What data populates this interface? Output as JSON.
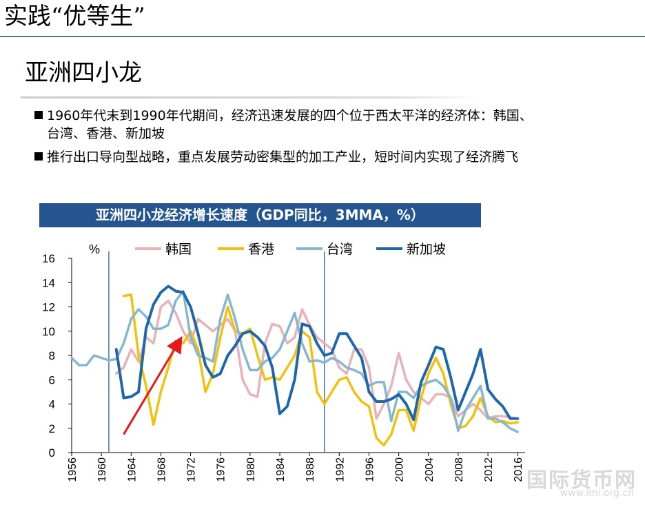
{
  "header": {
    "title": "实践“优等生”"
  },
  "section": {
    "title": "亚洲四小龙"
  },
  "bullets": [
    {
      "line1": "1960年代末到1990年代期间，经济迅速发展的四个位于西太平洋的经济体：韩国、",
      "line2": "台湾、香港、新加坡"
    },
    {
      "line1": "推行出口导向型战略，重点发展劳动密集型的加工产业，短时间内实现了经济腾飞"
    }
  ],
  "watermark": {
    "text": "国际货币网",
    "url": "www.imi.org.cn"
  },
  "chart_data": {
    "type": "line",
    "title": "亚洲四小龙经济增长速度（GDP同比，3MMA，%）",
    "ylabel": "%",
    "ylim": [
      0,
      16
    ],
    "yticks": [
      0,
      2,
      4,
      6,
      8,
      10,
      12,
      14,
      16
    ],
    "xlim": [
      1956,
      2017
    ],
    "xticks": [
      1956,
      1960,
      1964,
      1968,
      1972,
      1976,
      1980,
      1984,
      1988,
      1992,
      1996,
      2000,
      2004,
      2008,
      2012,
      2016
    ],
    "vlines": [
      1961,
      1990
    ],
    "legend": "top",
    "series": [
      {
        "name": "韩国",
        "color": "#e6b3b8",
        "x": [
          1962,
          1963,
          1964,
          1965,
          1966,
          1967,
          1968,
          1969,
          1970,
          1971,
          1972,
          1973,
          1974,
          1975,
          1976,
          1977,
          1978,
          1979,
          1980,
          1981,
          1982,
          1983,
          1984,
          1985,
          1986,
          1987,
          1988,
          1989,
          1990,
          1991,
          1992,
          1993,
          1994,
          1995,
          1996,
          1997,
          1998,
          1999,
          2000,
          2001,
          2002,
          2003,
          2004,
          2005,
          2006,
          2007,
          2008,
          2009,
          2010,
          2011,
          2012,
          2013,
          2014,
          2015,
          2016
        ],
        "y": [
          6.5,
          7.0,
          8.5,
          7.5,
          9.5,
          9.0,
          12.0,
          12.5,
          11.5,
          10.0,
          9.0,
          11.0,
          10.5,
          10.0,
          10.5,
          11.0,
          10.0,
          6.0,
          4.8,
          4.6,
          9.0,
          10.6,
          10.4,
          9.0,
          9.5,
          11.8,
          10.5,
          9.5,
          9.0,
          8.5,
          7.0,
          6.5,
          8.5,
          8.5,
          7.0,
          2.8,
          4.0,
          5.5,
          8.2,
          6.0,
          5.0,
          4.5,
          4.0,
          4.8,
          4.8,
          4.5,
          3.0,
          3.5,
          4.0,
          3.5,
          2.8,
          3.0,
          3.0,
          2.9,
          2.8
        ]
      },
      {
        "name": "香港",
        "color": "#f2c10f",
        "x": [
          1962,
          1963,
          1964,
          1965,
          1966,
          1967,
          1968,
          1969,
          1970,
          1971,
          1972,
          1973,
          1974,
          1975,
          1976,
          1977,
          1978,
          1979,
          1980,
          1981,
          1982,
          1983,
          1984,
          1985,
          1986,
          1987,
          1988,
          1989,
          1990,
          1991,
          1992,
          1993,
          1994,
          1995,
          1996,
          1997,
          1998,
          1999,
          2000,
          2001,
          2002,
          2003,
          2004,
          2005,
          2006,
          2007,
          2008,
          2009,
          2010,
          2011,
          2012,
          2013,
          2014,
          2015,
          2016
        ],
        "y": [
          null,
          12.9,
          13.0,
          8.0,
          5.5,
          2.3,
          5.0,
          7.0,
          9.2,
          9.0,
          10.0,
          8.5,
          5.0,
          6.5,
          9.5,
          12.0,
          10.0,
          9.8,
          10.2,
          8.0,
          6.0,
          6.2,
          6.0,
          7.0,
          8.0,
          10.0,
          9.5,
          5.0,
          4.0,
          5.0,
          6.0,
          6.2,
          5.0,
          4.2,
          3.8,
          1.2,
          0.6,
          1.5,
          3.5,
          3.5,
          1.8,
          4.5,
          6.5,
          7.8,
          6.5,
          4.0,
          2.0,
          2.2,
          3.0,
          4.5,
          3.0,
          2.5,
          2.6,
          2.4,
          2.5
        ]
      },
      {
        "name": "台湾",
        "color": "#86b7cf",
        "x": [
          1956,
          1957,
          1958,
          1959,
          1960,
          1961,
          1962,
          1963,
          1964,
          1965,
          1966,
          1967,
          1968,
          1969,
          1970,
          1971,
          1972,
          1973,
          1974,
          1975,
          1976,
          1977,
          1978,
          1979,
          1980,
          1981,
          1982,
          1983,
          1984,
          1985,
          1986,
          1987,
          1988,
          1989,
          1990,
          1991,
          1992,
          1993,
          1994,
          1995,
          1996,
          1997,
          1998,
          1999,
          2000,
          2001,
          2002,
          2003,
          2004,
          2005,
          2006,
          2007,
          2008,
          2009,
          2010,
          2011,
          2012,
          2013,
          2014,
          2015,
          2016
        ],
        "y": [
          7.8,
          7.2,
          7.2,
          8.0,
          7.8,
          7.6,
          7.7,
          9.0,
          11.0,
          11.8,
          11.2,
          10.2,
          10.2,
          10.5,
          12.5,
          13.3,
          9.5,
          8.0,
          7.8,
          7.5,
          11.0,
          13.0,
          11.0,
          8.5,
          6.8,
          6.8,
          7.5,
          7.8,
          8.5,
          10.0,
          11.5,
          9.0,
          7.5,
          7.6,
          7.4,
          7.8,
          7.5,
          7.0,
          6.8,
          6.5,
          5.5,
          5.8,
          5.8,
          2.6,
          5.0,
          5.0,
          4.5,
          5.5,
          5.8,
          6.0,
          5.5,
          4.5,
          1.8,
          3.5,
          4.5,
          5.5,
          2.8,
          2.8,
          2.5,
          2.0,
          1.7
        ]
      },
      {
        "name": "新加坡",
        "color": "#1f67a8",
        "x": [
          1962,
          1963,
          1964,
          1965,
          1966,
          1967,
          1968,
          1969,
          1970,
          1971,
          1972,
          1973,
          1974,
          1975,
          1976,
          1977,
          1978,
          1979,
          1980,
          1981,
          1982,
          1983,
          1984,
          1985,
          1986,
          1987,
          1988,
          1989,
          1990,
          1991,
          1992,
          1993,
          1994,
          1995,
          1996,
          1997,
          1998,
          1999,
          2000,
          2001,
          2002,
          2003,
          2004,
          2005,
          2006,
          2007,
          2008,
          2009,
          2010,
          2011,
          2012,
          2013,
          2014,
          2015,
          2016
        ],
        "y": [
          8.5,
          4.5,
          4.6,
          5.0,
          10.2,
          12.2,
          13.2,
          13.7,
          13.3,
          13.2,
          12.0,
          9.8,
          7.2,
          6.2,
          6.5,
          8.0,
          8.8,
          9.8,
          10.0,
          9.5,
          8.8,
          7.0,
          3.2,
          3.8,
          6.0,
          10.6,
          10.4,
          9.0,
          8.0,
          8.2,
          9.8,
          9.8,
          8.8,
          7.8,
          5.0,
          4.2,
          4.2,
          4.4,
          4.8,
          4.0,
          2.7,
          5.8,
          7.2,
          8.7,
          8.5,
          6.2,
          3.5,
          5.0,
          6.5,
          8.5,
          5.2,
          4.4,
          3.8,
          2.8,
          2.8
        ]
      }
    ],
    "annotations": [
      {
        "type": "arrow",
        "color": "#e41a1c",
        "from": [
          1963,
          1.5
        ],
        "to": [
          1970.6,
          9.3
        ]
      }
    ]
  }
}
